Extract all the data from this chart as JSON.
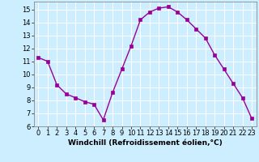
{
  "x": [
    0,
    1,
    2,
    3,
    4,
    5,
    6,
    7,
    8,
    9,
    10,
    11,
    12,
    13,
    14,
    15,
    16,
    17,
    18,
    19,
    20,
    21,
    22,
    23
  ],
  "y": [
    11.3,
    11.0,
    9.2,
    8.5,
    8.2,
    7.9,
    7.7,
    6.5,
    8.6,
    10.4,
    12.2,
    14.2,
    14.8,
    15.1,
    15.2,
    14.8,
    14.2,
    13.5,
    12.8,
    11.5,
    10.4,
    9.3,
    8.2,
    6.6
  ],
  "line_color": "#990099",
  "marker": "s",
  "markersize": 2.2,
  "linewidth": 1.0,
  "bg_color": "#cceeff",
  "grid_color": "#ffffff",
  "xlabel": "Windchill (Refroidissement éolien,°C)",
  "xlabel_fontsize": 6.5,
  "tick_fontsize": 6.0,
  "xlim": [
    -0.5,
    23.5
  ],
  "ylim": [
    6,
    15.6
  ],
  "yticks": [
    6,
    7,
    8,
    9,
    10,
    11,
    12,
    13,
    14,
    15
  ],
  "xticks": [
    0,
    1,
    2,
    3,
    4,
    5,
    6,
    7,
    8,
    9,
    10,
    11,
    12,
    13,
    14,
    15,
    16,
    17,
    18,
    19,
    20,
    21,
    22,
    23
  ]
}
